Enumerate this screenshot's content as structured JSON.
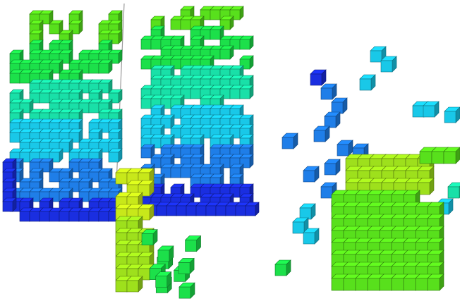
{
  "viewer": {
    "background": "#ffffff",
    "height_colormap": [
      "#1a2ee0",
      "#1f7ee8",
      "#19c8e8",
      "#19e0a8",
      "#1ce04a",
      "#58e01c",
      "#9ee01c",
      "#c8e81a"
    ],
    "cube_outline": "#2f5f2a",
    "voxel_icon": "cube-icon"
  }
}
